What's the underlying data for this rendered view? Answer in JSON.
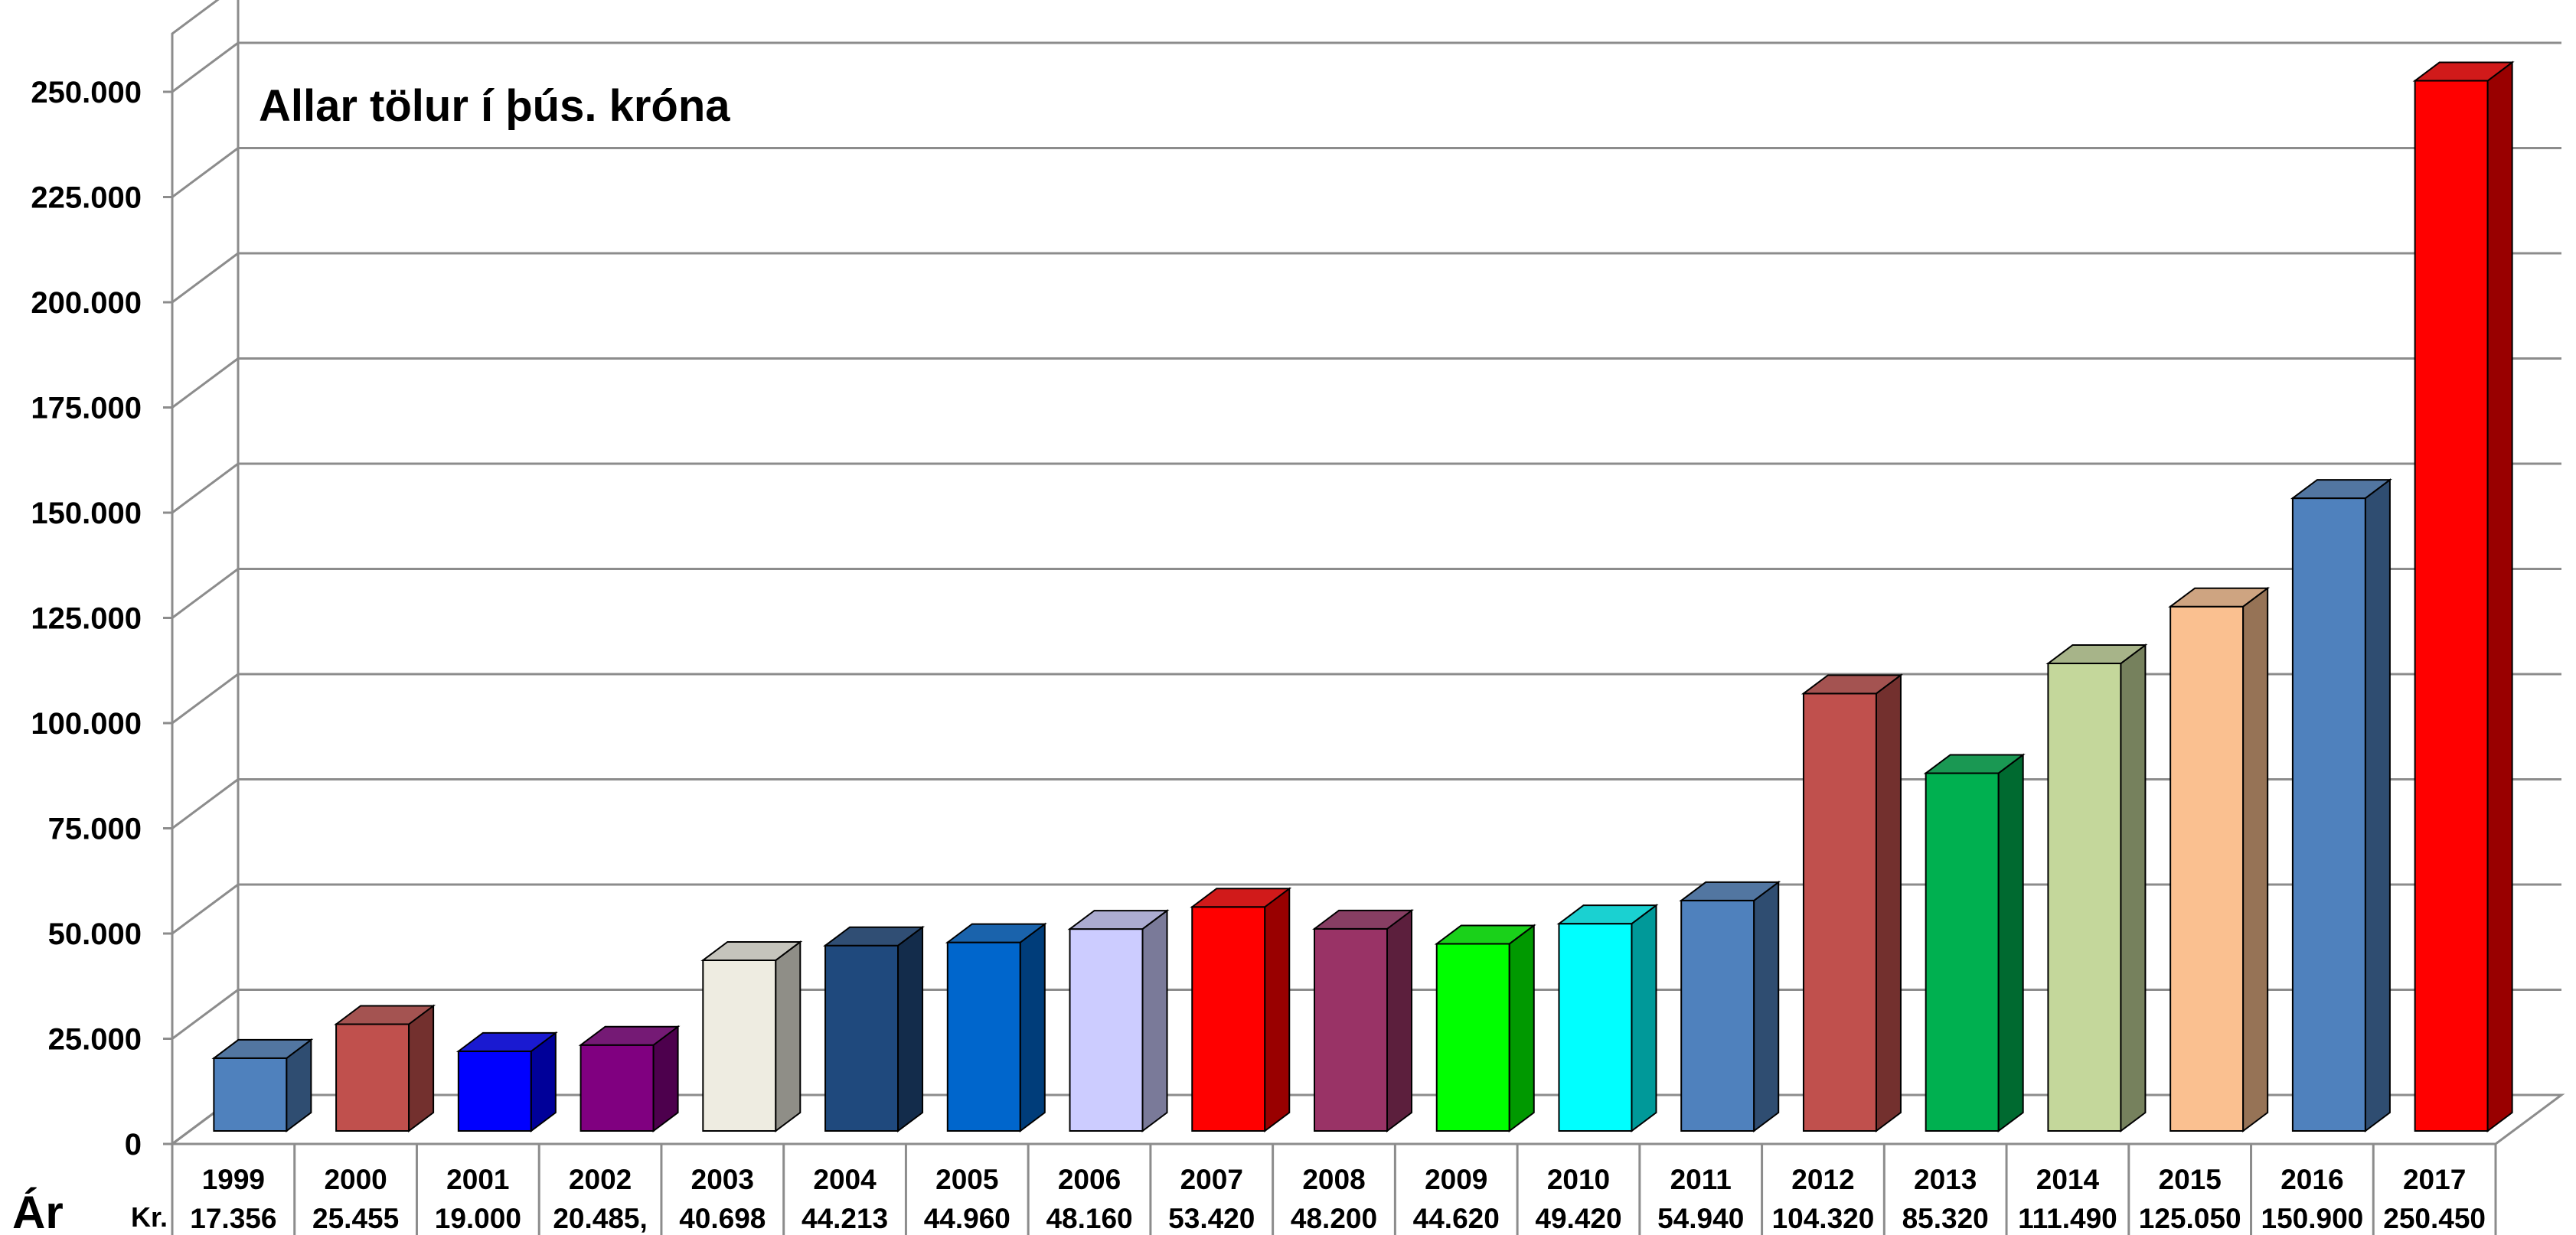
{
  "chart_data": {
    "type": "bar",
    "title": "Allar tölur í þús. króna",
    "ylim": [
      0,
      250000
    ],
    "y_ticks": [
      "0",
      "25.000",
      "50.000",
      "75.000",
      "100.000",
      "125.000",
      "150.000",
      "175.000",
      "200.000",
      "225.000",
      "250.000"
    ],
    "grid": true,
    "three_d": true,
    "categories": [
      "1999",
      "2000",
      "2001",
      "2002",
      "2003",
      "2004",
      "2005",
      "2006",
      "2007",
      "2008",
      "2009",
      "2010",
      "2011",
      "2012",
      "2013",
      "2014",
      "2015",
      "2016",
      "2017"
    ],
    "values": [
      17356,
      25455,
      19000,
      20485,
      40698,
      44213,
      44960,
      48160,
      53420,
      48200,
      44620,
      49420,
      54940,
      104320,
      85320,
      111490,
      125050,
      150900,
      250450
    ],
    "value_labels": [
      "17.356",
      "25.455",
      "19.000",
      "20.485,",
      "40.698",
      "44.213",
      "44.960",
      "48.160",
      "53.420",
      "48.200",
      "44.620",
      "49.420",
      "54.940",
      "104.320",
      "85.320",
      "111.490",
      "125.050",
      "150.900",
      "250.450"
    ],
    "colors": [
      "#4F81BD",
      "#C0504D",
      "#0000FF",
      "#800080",
      "#EEECE1",
      "#1F497D",
      "#0066CC",
      "#CCCCFF",
      "#FF0000",
      "#993366",
      "#00FF00",
      "#00FFFF",
      "#4F81BD",
      "#C0504D",
      "#00B050",
      "#C4D79B",
      "#FAC090",
      "#4F81BD",
      "#FF0000"
    ]
  },
  "table": {
    "row1_header": "Ár",
    "row2_header": "Kr."
  }
}
